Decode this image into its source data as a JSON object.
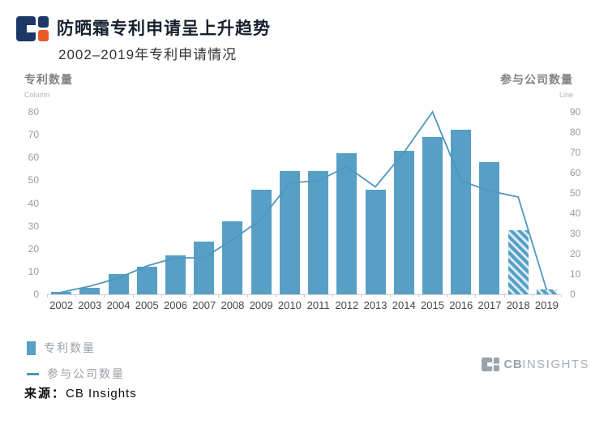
{
  "header": {
    "title": "防晒霜专利申请呈上升趋势",
    "subtitle": "2002–2019年专利申请情况"
  },
  "axes": {
    "left_title": "专利数量",
    "left_subtitle": "Column",
    "right_title": "参与公司数量",
    "right_subtitle": "Line"
  },
  "legend": [
    {
      "label": "专利数量",
      "type": "bar"
    },
    {
      "label": "参与公司数量",
      "type": "line"
    }
  ],
  "footer": {
    "label": "来源：",
    "value": "CB Insights"
  },
  "watermark": {
    "bold": "CB",
    "light": "INSIGHTS"
  },
  "colors": {
    "bar": "#579fc4",
    "bar_hatch_light": "#d9ecf5",
    "line": "#4e97bd",
    "logo_navy": "#1d3866",
    "logo_orange": "#e85a2a",
    "watermark_gray": "#9aa3ab"
  },
  "chart_data": {
    "type": "bar",
    "subtype": "bar+line dual-axis combo",
    "title": "防晒霜专利申请呈上升趋势",
    "subtitle": "2002–2019年专利申请情况",
    "categories": [
      "2002",
      "2003",
      "2004",
      "2005",
      "2006",
      "2007",
      "2008",
      "2009",
      "2010",
      "2011",
      "2012",
      "2013",
      "2014",
      "2015",
      "2016",
      "2017",
      "2018",
      "2019"
    ],
    "series": [
      {
        "name": "专利数量",
        "type": "bar",
        "axis": "left",
        "values": [
          1,
          3,
          9,
          12,
          17,
          23,
          32,
          46,
          54,
          54,
          62,
          46,
          63,
          69,
          72,
          58,
          28,
          2
        ],
        "hatched_years": [
          "2018",
          "2019"
        ]
      },
      {
        "name": "参与公司数量",
        "type": "line",
        "axis": "right",
        "values": [
          1,
          4,
          8,
          14,
          18,
          18,
          27,
          37,
          55,
          56,
          63,
          53,
          70,
          90,
          56,
          51,
          48,
          2
        ]
      }
    ],
    "left_axis": {
      "label": "专利数量 (Column)",
      "min": 0,
      "max": 80,
      "tick_step": 10
    },
    "right_axis": {
      "label": "参与公司数量 (Line)",
      "min": 0,
      "max": 90,
      "tick_step": 10
    },
    "xlabel": "",
    "ylabel": "专利数量",
    "grid": false,
    "legend_position": "bottom-left",
    "source": "CB Insights"
  }
}
